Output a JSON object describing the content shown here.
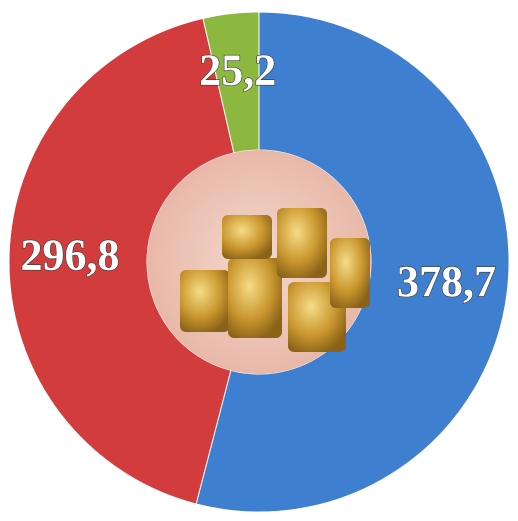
{
  "chart_data": {
    "type": "pie",
    "donut": true,
    "categories": [
      null,
      null,
      null
    ],
    "values": [
      378.7,
      296.8,
      25.2
    ],
    "value_labels": [
      "378,7",
      "296,8",
      "25,2"
    ],
    "colors": [
      "#3f7fcf",
      "#d23c3c",
      "#8cb840"
    ]
  }
}
